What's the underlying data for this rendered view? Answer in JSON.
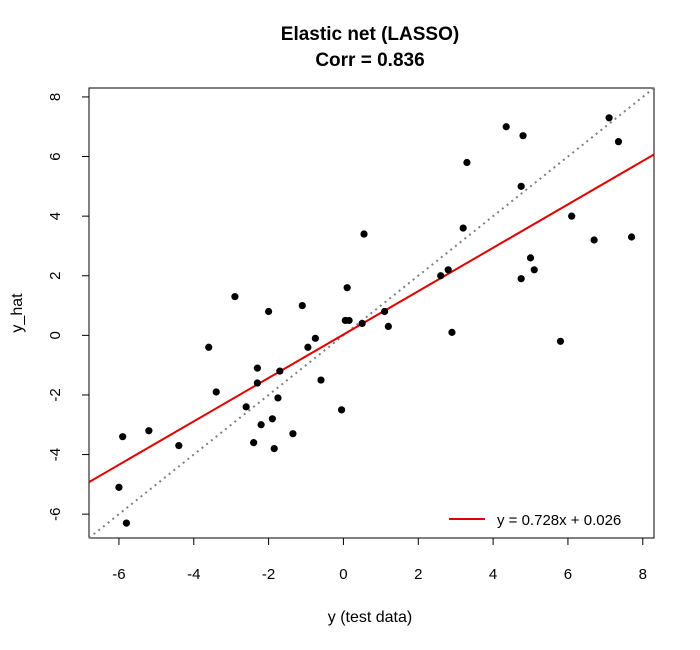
{
  "chart_data": {
    "type": "scatter",
    "title": "Elastic net (LASSO)",
    "subtitle": "Corr = 0.836",
    "xlabel": "y (test data)",
    "ylabel": "y_hat",
    "xlim": [
      -6.8,
      8.3
    ],
    "ylim": [
      -6.8,
      8.3
    ],
    "xticks": [
      -6,
      -4,
      -2,
      0,
      2,
      4,
      6,
      8
    ],
    "yticks": [
      -6,
      -4,
      -2,
      0,
      2,
      4,
      6,
      8
    ],
    "grid": false,
    "legend_position": "bottom-right",
    "points": [
      [
        -6.0,
        -5.1
      ],
      [
        -5.9,
        -3.4
      ],
      [
        -5.8,
        -6.3
      ],
      [
        -5.2,
        -3.2
      ],
      [
        -4.4,
        -3.7
      ],
      [
        -3.6,
        -0.4
      ],
      [
        -3.4,
        -1.9
      ],
      [
        -2.9,
        1.3
      ],
      [
        -2.6,
        -2.4
      ],
      [
        -2.4,
        -3.6
      ],
      [
        -2.3,
        -1.1
      ],
      [
        -2.3,
        -1.6
      ],
      [
        -2.2,
        -3.0
      ],
      [
        -2.0,
        0.8
      ],
      [
        -1.9,
        -2.8
      ],
      [
        -1.85,
        -3.8
      ],
      [
        -1.75,
        -2.1
      ],
      [
        -1.7,
        -1.2
      ],
      [
        -1.35,
        -3.3
      ],
      [
        -1.1,
        1.0
      ],
      [
        -0.95,
        -0.4
      ],
      [
        -0.75,
        -0.1
      ],
      [
        -0.6,
        -1.5
      ],
      [
        -0.05,
        -2.5
      ],
      [
        0.05,
        0.5
      ],
      [
        0.1,
        1.6
      ],
      [
        0.15,
        0.5
      ],
      [
        0.5,
        0.4
      ],
      [
        0.55,
        3.4
      ],
      [
        1.1,
        0.8
      ],
      [
        1.2,
        0.3
      ],
      [
        2.6,
        2.0
      ],
      [
        2.8,
        2.2
      ],
      [
        2.9,
        0.1
      ],
      [
        3.2,
        3.6
      ],
      [
        3.3,
        5.8
      ],
      [
        4.35,
        7.0
      ],
      [
        4.75,
        5.0
      ],
      [
        4.75,
        1.9
      ],
      [
        4.8,
        6.7
      ],
      [
        5.0,
        2.6
      ],
      [
        5.1,
        2.2
      ],
      [
        5.8,
        -0.2
      ],
      [
        6.1,
        4.0
      ],
      [
        6.7,
        3.2
      ],
      [
        7.1,
        7.3
      ],
      [
        7.35,
        6.5
      ],
      [
        7.7,
        3.3
      ]
    ],
    "fit_line": {
      "slope": 0.728,
      "intercept": 0.026,
      "color": "#e00000",
      "label": "y = 0.728x + 0.026"
    },
    "identity_line": {
      "slope": 1,
      "intercept": 0,
      "color": "#808080",
      "style": "dotted"
    },
    "point_color": "#000000"
  }
}
